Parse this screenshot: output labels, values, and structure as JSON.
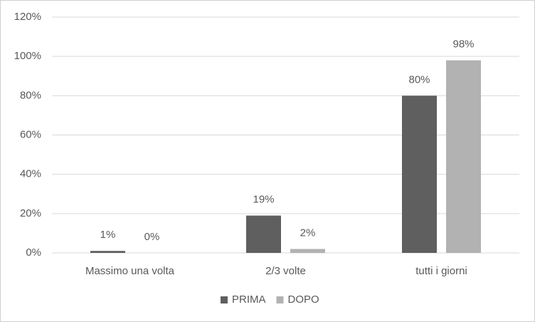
{
  "chart_data": {
    "type": "bar",
    "categories": [
      "Massimo una volta",
      "2/3 volte",
      "tutti i giorni"
    ],
    "series": [
      {
        "name": "PRIMA",
        "color": "#5f5f5f",
        "values": [
          1,
          19,
          80
        ],
        "value_labels": [
          "1%",
          "19%",
          "80%"
        ]
      },
      {
        "name": "DOPO",
        "color": "#b2b2b2",
        "values": [
          0,
          2,
          98
        ],
        "value_labels": [
          "0%",
          "2%",
          "98%"
        ]
      }
    ],
    "ylim": [
      0,
      120
    ],
    "yticks": [
      {
        "value": 0,
        "label": "0%"
      },
      {
        "value": 20,
        "label": "20%"
      },
      {
        "value": 40,
        "label": "40%"
      },
      {
        "value": 60,
        "label": "60%"
      },
      {
        "value": 80,
        "label": "80%"
      },
      {
        "value": 100,
        "label": "100%"
      },
      {
        "value": 120,
        "label": "120%"
      }
    ],
    "grid": true,
    "legend": "bottom"
  }
}
